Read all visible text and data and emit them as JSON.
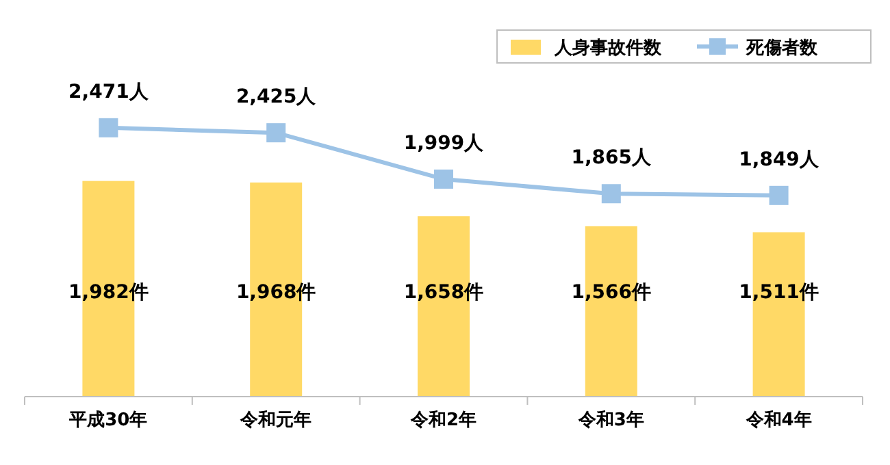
{
  "chart_data": {
    "type": "bar",
    "categories": [
      "平成30年",
      "令和元年",
      "令和2年",
      "令和3年",
      "令和4年"
    ],
    "legend": "top right",
    "grid": false,
    "series": [
      {
        "name": "人身事故件数",
        "color": "#ffd966",
        "values": [
          1982,
          1968,
          1658,
          1566,
          1511
        ],
        "value_labels": [
          "1,982件",
          "1,968件",
          "1,658件",
          "1,566件",
          "1,511件"
        ]
      },
      {
        "name": "死傷者数",
        "type": "line",
        "color": "#9dc3e6",
        "marker": "square",
        "values": [
          2471,
          2425,
          1999,
          1865,
          1849
        ],
        "value_labels": [
          "2,471人",
          "2,425人",
          "1,999人",
          "1,865人",
          "1,849人"
        ]
      }
    ]
  }
}
